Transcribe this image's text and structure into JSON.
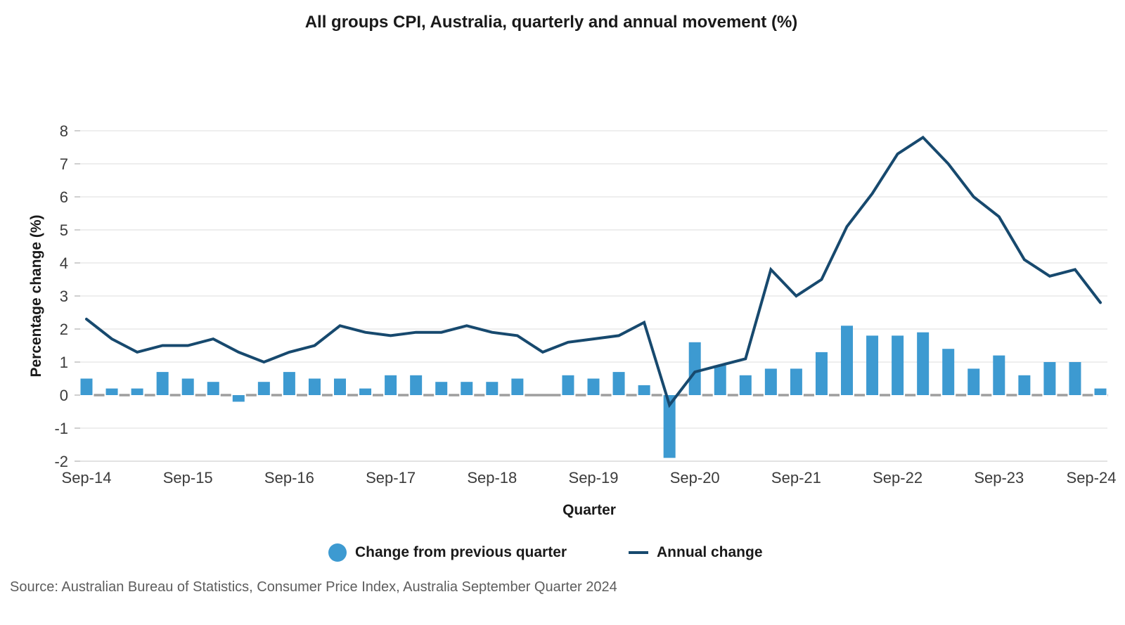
{
  "title": "All groups CPI, Australia, quarterly and annual movement (%)",
  "source_note": "Source: Australian Bureau of Statistics, Consumer Price Index, Australia September Quarter 2024",
  "legend": {
    "bar_label": "Change from previous quarter",
    "line_label": "Annual change"
  },
  "colors": {
    "bar": "#3d9ad1",
    "line": "#17496e",
    "zero_dash": "#9e9e9e",
    "grid": "#e8e8e8",
    "axis_line": "#d9d9d9",
    "grid_tick": "#cfcfcf",
    "tick_text": "#3b3b3b",
    "heading_text": "#1a1a1a",
    "source_text": "#5d5d5d",
    "background": "#ffffff"
  },
  "chart_data": {
    "type": "bar+line",
    "title": "All groups CPI, Australia, quarterly and annual movement (%)",
    "xlabel": "Quarter",
    "ylabel": "Percentage change (%)",
    "ylim": [
      -2,
      8
    ],
    "yticks": [
      8,
      7,
      6,
      5,
      4,
      3,
      2,
      1,
      0,
      -1,
      -2
    ],
    "grid": true,
    "legend_position": "bottom",
    "x_tick_step": 4,
    "x_tick_labels": [
      "Sep-14",
      "Sep-15",
      "Sep-16",
      "Sep-17",
      "Sep-18",
      "Sep-19",
      "Sep-20",
      "Sep-21",
      "Sep-22",
      "Sep-23",
      "Sep-24"
    ],
    "x": [
      "Sep-14",
      "Dec-14",
      "Mar-15",
      "Jun-15",
      "Sep-15",
      "Dec-15",
      "Mar-16",
      "Jun-16",
      "Sep-16",
      "Dec-16",
      "Mar-17",
      "Jun-17",
      "Sep-17",
      "Dec-17",
      "Mar-18",
      "Jun-18",
      "Sep-18",
      "Dec-18",
      "Mar-19",
      "Jun-19",
      "Sep-19",
      "Dec-19",
      "Mar-20",
      "Jun-20",
      "Sep-20",
      "Dec-20",
      "Mar-21",
      "Jun-21",
      "Sep-21",
      "Dec-21",
      "Mar-22",
      "Jun-22",
      "Sep-22",
      "Dec-22",
      "Mar-23",
      "Jun-23",
      "Sep-23",
      "Dec-23",
      "Mar-24",
      "Jun-24",
      "Sep-24"
    ],
    "series": [
      {
        "name": "Change from previous quarter",
        "type": "bar",
        "values": [
          0.5,
          0.2,
          0.2,
          0.7,
          0.5,
          0.4,
          -0.2,
          0.4,
          0.7,
          0.5,
          0.5,
          0.2,
          0.6,
          0.6,
          0.4,
          0.4,
          0.4,
          0.5,
          0.0,
          0.6,
          0.5,
          0.7,
          0.3,
          -1.9,
          1.6,
          0.9,
          0.6,
          0.8,
          0.8,
          1.3,
          2.1,
          1.8,
          1.8,
          1.9,
          1.4,
          0.8,
          1.2,
          0.6,
          1.0,
          1.0,
          0.2
        ]
      },
      {
        "name": "Annual change",
        "type": "line",
        "values": [
          2.3,
          1.7,
          1.3,
          1.5,
          1.5,
          1.7,
          1.3,
          1.0,
          1.3,
          1.5,
          2.1,
          1.9,
          1.8,
          1.9,
          1.9,
          2.1,
          1.9,
          1.8,
          1.3,
          1.6,
          1.7,
          1.8,
          2.2,
          -0.3,
          0.7,
          0.9,
          1.1,
          3.8,
          3.0,
          3.5,
          5.1,
          6.1,
          7.3,
          7.8,
          7.0,
          6.0,
          5.4,
          4.1,
          3.6,
          3.8,
          2.8
        ]
      }
    ]
  }
}
